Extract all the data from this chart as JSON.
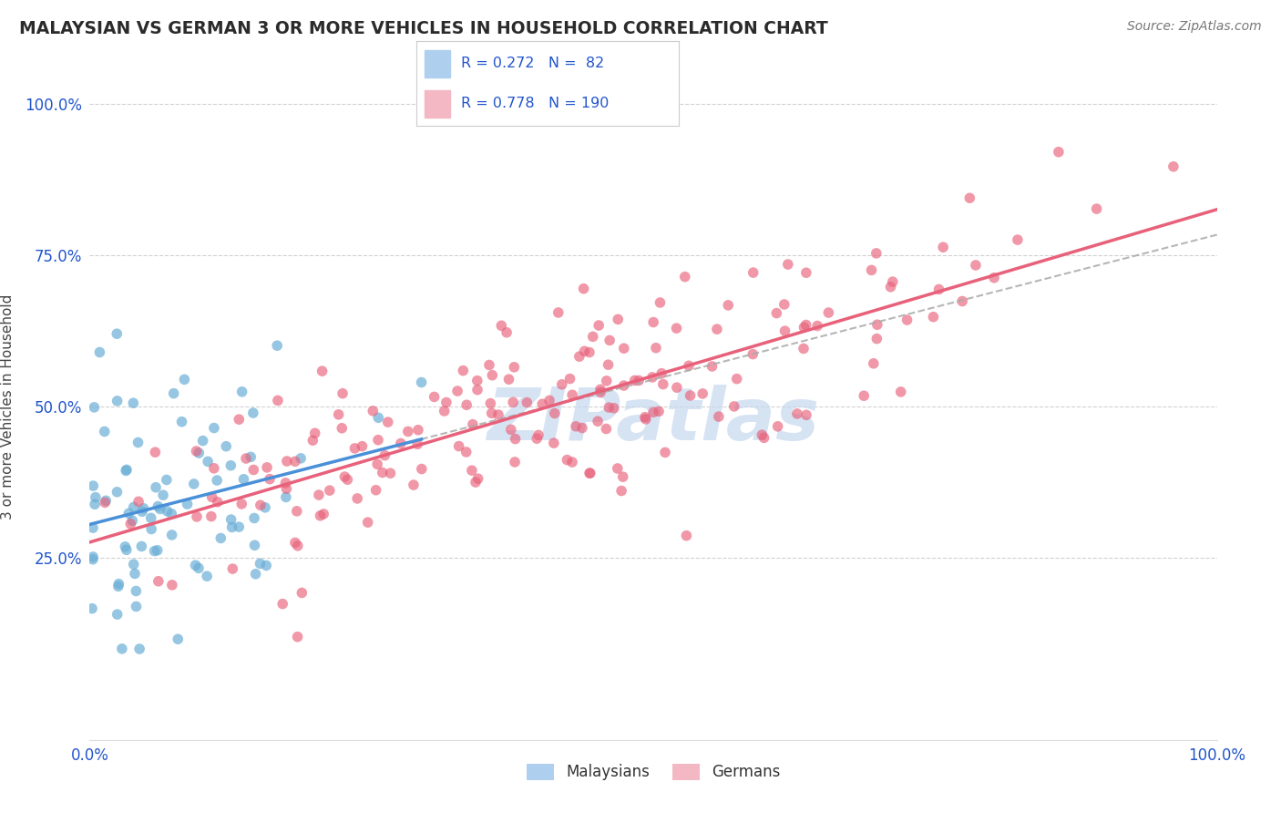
{
  "title": "MALAYSIAN VS GERMAN 3 OR MORE VEHICLES IN HOUSEHOLD CORRELATION CHART",
  "source_text": "Source: ZipAtlas.com",
  "ylabel": "3 or more Vehicles in Household",
  "xmin": 0.0,
  "xmax": 1.0,
  "ymin": -0.05,
  "ymax": 1.05,
  "yticks": [
    0.25,
    0.5,
    0.75,
    1.0
  ],
  "ytick_labels": [
    "25.0%",
    "50.0%",
    "75.0%",
    "100.0%"
  ],
  "xticks": [
    0.0,
    1.0
  ],
  "xtick_labels": [
    "0.0%",
    "100.0%"
  ],
  "malaysians_R": 0.272,
  "malaysians_N": 82,
  "germans_R": 0.778,
  "germans_N": 190,
  "watermark_text": "ZIPatlas",
  "background_color": "#ffffff",
  "grid_color": "#cccccc",
  "title_color": "#2b2b2b",
  "source_color": "#777777",
  "blue_dot_color": "#6aaed6",
  "pink_dot_color": "#e8617a",
  "blue_line_color": "#4a90d9",
  "pink_line_color": "#e8617a",
  "blue_legend_color": "#aed0ee",
  "pink_legend_color": "#f4b8c4",
  "legend_text_color": "#2255cc",
  "watermark_color": "#c5d8ef",
  "tick_label_color": "#2255cc"
}
